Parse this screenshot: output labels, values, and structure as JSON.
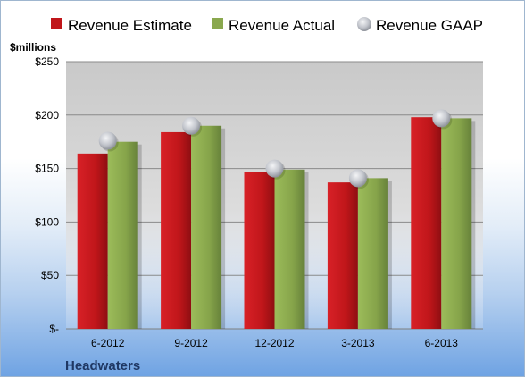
{
  "chart_data": {
    "type": "bar",
    "unit_label": "$millions",
    "company": "Headwaters",
    "categories": [
      "6-2012",
      "9-2012",
      "12-2012",
      "3-2013",
      "6-2013"
    ],
    "series": [
      {
        "name": "Revenue Estimate",
        "type": "bar",
        "color": "#c0161a",
        "values": [
          164,
          184,
          147,
          137,
          198
        ]
      },
      {
        "name": "Revenue Actual",
        "type": "bar",
        "color": "#8aa84e",
        "values": [
          175,
          190,
          149,
          141,
          197
        ]
      },
      {
        "name": "Revenue GAAP",
        "type": "marker",
        "color": "#b8bcc4",
        "values": [
          176,
          190,
          150,
          141,
          197
        ]
      }
    ],
    "ylim": [
      0,
      250
    ],
    "yticks": [
      0,
      50,
      100,
      150,
      200,
      250
    ],
    "ytick_labels": [
      "$-",
      "$50",
      "$100",
      "$150",
      "$200",
      "$250"
    ],
    "grid": true,
    "legend_position": "top"
  }
}
